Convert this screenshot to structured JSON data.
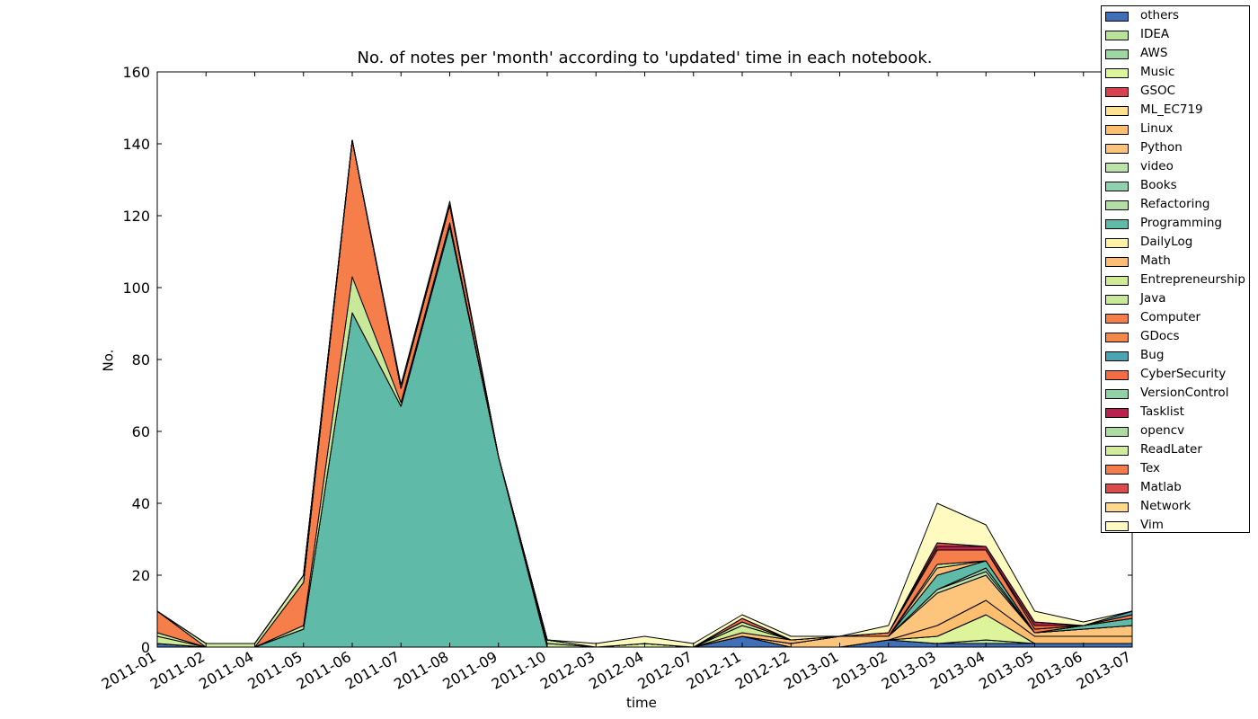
{
  "chart_data": {
    "type": "area",
    "title": "No. of notes per 'month' according to 'updated' time in each notebook.",
    "xlabel": "time",
    "ylabel": "No.",
    "ylim": [
      0,
      160
    ],
    "yticks": [
      0,
      20,
      40,
      60,
      80,
      100,
      120,
      140,
      160
    ],
    "legend_position": "outside top-right",
    "stacked": true,
    "categories": [
      "2011-01",
      "2011-02",
      "2011-04",
      "2011-05",
      "2011-06",
      "2011-07",
      "2011-08",
      "2011-09",
      "2011-10",
      "2012-03",
      "2012-04",
      "2012-07",
      "2012-11",
      "2012-12",
      "2013-01",
      "2013-02",
      "2013-03",
      "2013-04",
      "2013-05",
      "2013-06",
      "2013-07"
    ],
    "series": [
      {
        "name": "others",
        "color": "#3f6fb6",
        "values": [
          1,
          0,
          0,
          0,
          0,
          0,
          0,
          0,
          0,
          0,
          0,
          0,
          3,
          0,
          0,
          2,
          1,
          1,
          1,
          1,
          1
        ]
      },
      {
        "name": "IDEA",
        "color": "#b9e29b",
        "values": [
          0,
          0,
          0,
          0,
          0,
          0,
          0,
          0,
          0,
          0,
          0,
          0,
          0,
          0,
          0,
          0,
          0,
          1,
          0,
          0,
          0
        ]
      },
      {
        "name": "AWS",
        "color": "#9ed7a4",
        "values": [
          0,
          0,
          0,
          0,
          0,
          0,
          0,
          0,
          0,
          0,
          0,
          0,
          0,
          0,
          0,
          0,
          0,
          0,
          0,
          0,
          0
        ]
      },
      {
        "name": "Music",
        "color": "#def49b",
        "values": [
          0,
          0,
          0,
          0,
          0,
          0,
          0,
          0,
          0,
          0,
          1,
          0,
          0,
          0,
          0,
          0,
          2,
          7,
          0,
          0,
          0
        ]
      },
      {
        "name": "GSOC",
        "color": "#d8414f",
        "values": [
          0,
          0,
          0,
          0,
          0,
          0,
          0,
          0,
          0,
          0,
          0,
          0,
          0,
          0,
          0,
          0,
          0,
          0,
          0,
          0,
          0
        ]
      },
      {
        "name": "ML_EC719",
        "color": "#fee28f",
        "values": [
          0,
          0,
          0,
          0,
          0,
          0,
          0,
          0,
          0,
          0,
          0,
          0,
          0,
          0,
          0,
          0,
          0,
          0,
          0,
          0,
          0
        ]
      },
      {
        "name": "Linux",
        "color": "#fdbf6f",
        "values": [
          0,
          0,
          0,
          0,
          0,
          0,
          0,
          0,
          0,
          0,
          0,
          0,
          0,
          0,
          0,
          0,
          3,
          4,
          2,
          2,
          2
        ]
      },
      {
        "name": "Python",
        "color": "#fdc47b",
        "values": [
          0,
          0,
          0,
          0,
          0,
          0,
          0,
          0,
          0,
          0,
          0,
          0,
          0,
          1,
          3,
          1,
          9,
          7,
          1,
          2,
          3
        ]
      },
      {
        "name": "video",
        "color": "#bce3a8",
        "values": [
          0,
          0,
          0,
          0,
          0,
          0,
          0,
          0,
          0,
          0,
          0,
          0,
          0,
          0,
          0,
          0,
          1,
          1,
          0,
          0,
          0
        ]
      },
      {
        "name": "Books",
        "color": "#8fd2b0",
        "values": [
          0,
          0,
          0,
          0,
          0,
          0,
          0,
          0,
          0,
          0,
          0,
          0,
          0,
          0,
          0,
          0,
          0,
          1,
          0,
          0,
          0
        ]
      },
      {
        "name": "Refactoring",
        "color": "#b3dfa6",
        "values": [
          0,
          0,
          0,
          0,
          0,
          0,
          0,
          0,
          0,
          0,
          0,
          0,
          0,
          0,
          0,
          0,
          0,
          0,
          0,
          0,
          0
        ]
      },
      {
        "name": "Programming",
        "color": "#5fbaa8",
        "values": [
          0,
          0,
          0,
          5,
          93,
          67,
          117,
          53,
          0,
          0,
          0,
          0,
          0,
          0,
          0,
          0,
          4,
          2,
          0,
          1,
          2
        ]
      },
      {
        "name": "DailyLog",
        "color": "#fff2a6",
        "values": [
          0,
          0,
          0,
          0,
          0,
          0,
          0,
          0,
          0,
          0,
          0,
          0,
          0,
          0,
          0,
          0,
          0,
          0,
          0,
          0,
          0
        ]
      },
      {
        "name": "Math",
        "color": "#fdbd74",
        "values": [
          0,
          0,
          0,
          0,
          0,
          0,
          0,
          0,
          0,
          0,
          0,
          0,
          1,
          1,
          0,
          0,
          2,
          0,
          0,
          0,
          0
        ]
      },
      {
        "name": "Entrepreneurship",
        "color": "#cfeb96",
        "values": [
          2,
          0,
          0,
          0,
          0,
          0,
          0,
          0,
          1,
          0,
          0,
          0,
          2,
          0,
          0,
          0,
          1,
          0,
          0,
          0,
          0
        ]
      },
      {
        "name": "Java",
        "color": "#c8e89a",
        "values": [
          1,
          0,
          0,
          1,
          10,
          1,
          1,
          0,
          1,
          0,
          0,
          0,
          1,
          0,
          0,
          0,
          0,
          0,
          0,
          0,
          0
        ]
      },
      {
        "name": "Computer",
        "color": "#f67e4b",
        "values": [
          6,
          0,
          0,
          12,
          38,
          4,
          5,
          0,
          0,
          0,
          0,
          0,
          0,
          0,
          0,
          1,
          4,
          3,
          1,
          0,
          1
        ]
      },
      {
        "name": "GDocs",
        "color": "#f58849",
        "values": [
          0,
          0,
          0,
          0,
          0,
          0,
          0,
          0,
          0,
          0,
          0,
          0,
          0,
          0,
          0,
          0,
          0,
          0,
          0,
          0,
          0
        ]
      },
      {
        "name": "Bug",
        "color": "#4aa4b3",
        "values": [
          0,
          0,
          0,
          0,
          0,
          0,
          0,
          0,
          0,
          0,
          0,
          0,
          0,
          0,
          0,
          0,
          0,
          0,
          0,
          0,
          1
        ]
      },
      {
        "name": "CyberSecurity",
        "color": "#f46d43",
        "values": [
          0,
          0,
          0,
          0,
          0,
          0,
          0,
          0,
          0,
          0,
          0,
          0,
          1,
          0,
          0,
          0,
          0,
          0,
          1,
          0,
          0
        ]
      },
      {
        "name": "VersionControl",
        "color": "#90d1a6",
        "values": [
          0,
          0,
          0,
          0,
          0,
          0,
          0,
          0,
          0,
          0,
          0,
          0,
          0,
          0,
          0,
          0,
          0,
          0,
          0,
          0,
          0
        ]
      },
      {
        "name": "Tasklist",
        "color": "#b9224e",
        "values": [
          0,
          0,
          0,
          0,
          0,
          0,
          0,
          0,
          0,
          0,
          0,
          0,
          0,
          0,
          0,
          0,
          1,
          1,
          1,
          0,
          0
        ]
      },
      {
        "name": "opencv",
        "color": "#addca3",
        "values": [
          0,
          0,
          0,
          0,
          0,
          0,
          0,
          0,
          0,
          0,
          0,
          0,
          0,
          0,
          0,
          0,
          0,
          0,
          0,
          0,
          0
        ]
      },
      {
        "name": "ReadLater",
        "color": "#d1ec9c",
        "values": [
          0,
          1,
          1,
          2,
          0,
          0,
          0,
          0,
          0,
          0,
          0,
          0,
          0,
          0,
          0,
          0,
          0,
          0,
          0,
          0,
          0
        ]
      },
      {
        "name": "Tex",
        "color": "#f47c4a",
        "values": [
          0,
          0,
          0,
          0,
          0,
          0,
          0,
          0,
          0,
          0,
          0,
          0,
          0,
          0,
          0,
          0,
          0,
          0,
          0,
          0,
          0
        ]
      },
      {
        "name": "Matlab",
        "color": "#dc4a4c",
        "values": [
          0,
          0,
          0,
          0,
          0,
          0,
          0,
          0,
          0,
          0,
          0,
          0,
          0,
          0,
          0,
          0,
          1,
          0,
          0,
          0,
          0
        ]
      },
      {
        "name": "Network",
        "color": "#fed98b",
        "values": [
          0,
          0,
          0,
          0,
          0,
          0,
          0,
          0,
          0,
          0,
          0,
          0,
          0,
          0,
          0,
          0,
          0,
          0,
          0,
          0,
          0
        ]
      },
      {
        "name": "Vim",
        "color": "#fffabf",
        "values": [
          0,
          0,
          0,
          0,
          0,
          1,
          1,
          0,
          0,
          1,
          2,
          1,
          1,
          1,
          0,
          2,
          11,
          6,
          3,
          1,
          0
        ]
      }
    ]
  }
}
